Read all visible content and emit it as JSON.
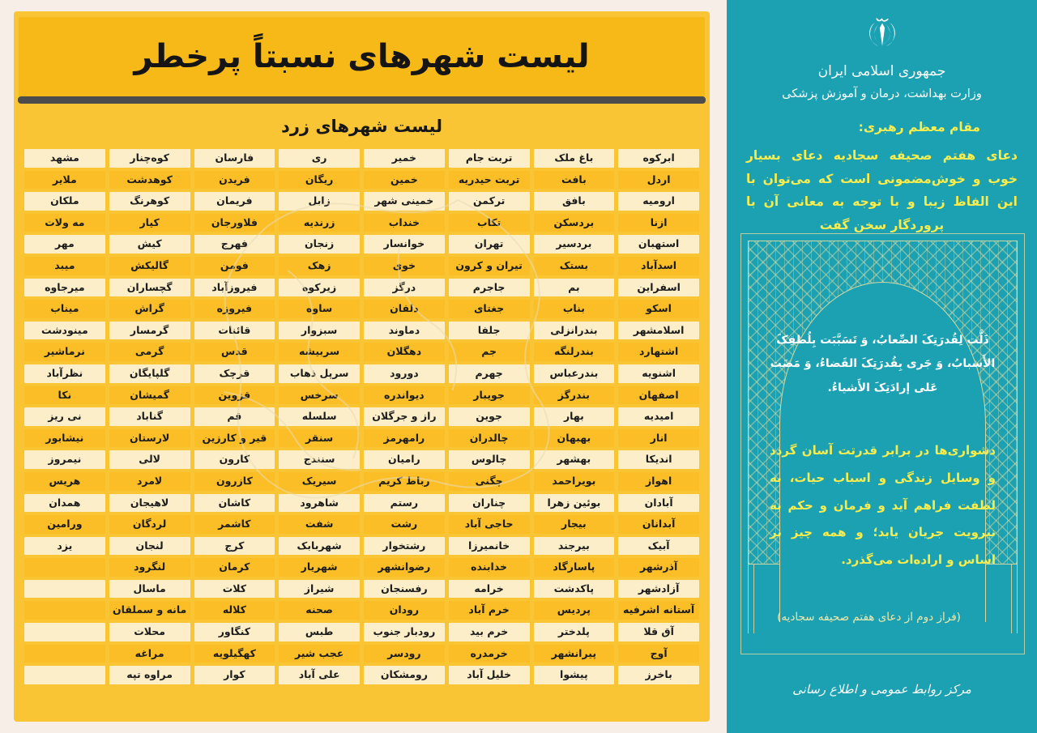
{
  "left_panel": {
    "title": "لیست شهرهای نسبتاً پرخطر",
    "subtitle": "لیست شهرهای زرد",
    "table": {
      "columns": [
        {
          "cities": [
            "ابرکوه",
            "اردل",
            "ارومیه",
            "ازنا",
            "استهبان",
            "اسدآباد",
            "اسفراین",
            "اسکو",
            "اسلامشهر",
            "اشتهارد",
            "اشنویه",
            "اصفهان",
            "امیدیه",
            "انار",
            "اندیکا",
            "اهواز",
            "آبادان",
            "آبدانان",
            "آبیک",
            "آذرشهر",
            "آزادشهر",
            "آستانه اشرفیه",
            "آق قلا",
            "آوج",
            "باخرز"
          ]
        },
        {
          "cities": [
            "باغ ملک",
            "بافت",
            "بافق",
            "بردسکن",
            "بردسیر",
            "بستک",
            "بم",
            "بناب",
            "بندرانزلی",
            "بندرلنگه",
            "بندرعباس",
            "بندرگز",
            "بهار",
            "بهبهان",
            "بهشهر",
            "بویراحمد",
            "بوئین زهرا",
            "بیجار",
            "بیرجند",
            "پاسارگاد",
            "پاکدشت",
            "پردیس",
            "پلدختر",
            "پیرانشهر",
            "پیشوا"
          ]
        },
        {
          "cities": [
            "تربت جام",
            "تربت حیدریه",
            "ترکمن",
            "تکاب",
            "تهران",
            "تیران و کرون",
            "جاجرم",
            "جغتای",
            "جلفا",
            "جم",
            "جهرم",
            "جویبار",
            "جوین",
            "چالدران",
            "چالوس",
            "چگنی",
            "چناران",
            "حاجی آباد",
            "خانمیرزا",
            "خدابنده",
            "خرامه",
            "خرم آباد",
            "خرم بید",
            "خرمدره",
            "خلیل آباد"
          ]
        },
        {
          "cities": [
            "خمیر",
            "خمین",
            "خمینی شهر",
            "خنداب",
            "خوانسار",
            "خوی",
            "درگز",
            "دلفان",
            "دماوند",
            "دهگلان",
            "دورود",
            "دیواندره",
            "راز و جرگلان",
            "رامهرمز",
            "رامیان",
            "رباط کریم",
            "رستم",
            "رشت",
            "رشتخوار",
            "رضوانشهر",
            "رفسنجان",
            "رودان",
            "رودبار جنوب",
            "رودسر",
            "رومشکان"
          ]
        },
        {
          "cities": [
            "ری",
            "ریگان",
            "زابل",
            "زرندیه",
            "زنجان",
            "زهک",
            "زیرکوه",
            "ساوه",
            "سبزوار",
            "سربیشه",
            "سرپل ذهاب",
            "سرخس",
            "سلسله",
            "سنقر",
            "سنندج",
            "سیریک",
            "شاهرود",
            "شفت",
            "شهربابک",
            "شهریار",
            "شیراز",
            "صحنه",
            "طبس",
            "عجب شیر",
            "علی آباد"
          ]
        },
        {
          "cities": [
            "فارسان",
            "فریدن",
            "فریمان",
            "فلاورجان",
            "فهرج",
            "فومن",
            "فیروزآباد",
            "فیروزه",
            "قائنات",
            "قدس",
            "قرچک",
            "قزوین",
            "قم",
            "قیر و کارزین",
            "کارون",
            "کازرون",
            "کاشان",
            "کاشمر",
            "کرج",
            "کرمان",
            "کلات",
            "کلاله",
            "کنگاور",
            "کهگیلویه",
            "کوار"
          ]
        },
        {
          "cities": [
            "کوه‌چنار",
            "کوهدشت",
            "کوهرنگ",
            "کیار",
            "کیش",
            "گالیکش",
            "گچساران",
            "گراش",
            "گرمسار",
            "گرمی",
            "گلپایگان",
            "گمیشان",
            "گناباد",
            "لارستان",
            "لالی",
            "لامرد",
            "لاهیجان",
            "لردگان",
            "لنجان",
            "لنگرود",
            "ماسال",
            "مانه و سملقان",
            "محلات",
            "مراغه",
            "مراوه تپه"
          ]
        },
        {
          "cities": [
            "مشهد",
            "ملایر",
            "ملکان",
            "مه ولات",
            "مهر",
            "میبد",
            "میرجاوه",
            "میناب",
            "مینودشت",
            "نرماشیر",
            "نظرآباد",
            "نکا",
            "نی ریز",
            "نیشابور",
            "نیمروز",
            "هریس",
            "همدان",
            "ورامین",
            "یزد",
            "",
            "",
            "",
            "",
            "",
            ""
          ]
        }
      ]
    }
  },
  "right_panel": {
    "emblem_icon": "iran-emblem",
    "gov_line1": "جمهوری اسلامی ایران",
    "gov_line2": "وزارت بهداشت، درمان و آموزش پزشکی",
    "leader_label": "مقام معظم رهبری:",
    "leader_quote": "دعای هفتم صحیفه سجادیه دعای بسیار خوب و خوش‌مضمونی است که می‌توان با این الفاظ زیبا و با توجه به معانی آن با پروردگار سخن گفت",
    "prayer_arabic": "ذَلَّت لِقُدرَتِکَ الصِّعابُ، وَ تَسَبَّبَت بِلُطفِکَ الأَسبابُ، وَ جَری بِقُدرَتِکَ القَضاءُ، وَ مَضَت عَلی إرادَتِکَ الأَشیاءُ.",
    "prayer_translation": "دشواری‌ها در برابر قدرتت آسان گردد و وسایل زندگی و اسباب حیات، به لطفت فراهم آید و فرمان و حکم به نیرویت جریان یابد؛ و همه چیز بر اساس و اراده‌ات می‌گذرد.",
    "attribution": "(فراز دوم از دعای هفتم صحیفه سجادیه)",
    "footer": "مرکز روابط عمومی و اطلاع رسانی"
  },
  "colors": {
    "page_background": "#F6EEE7",
    "card_yellow": "#F9C534",
    "title_gold": "#F7B917",
    "divider_gray": "#4C4C4C",
    "row_cream": "#FBEEC9",
    "row_amber": "#FBBE27",
    "panel_teal": "#1CA1B2",
    "accent_yellow_text": "#F6EC4E",
    "gold_ornament": "#E8DDA2",
    "map_outline": "#EADCB4"
  }
}
